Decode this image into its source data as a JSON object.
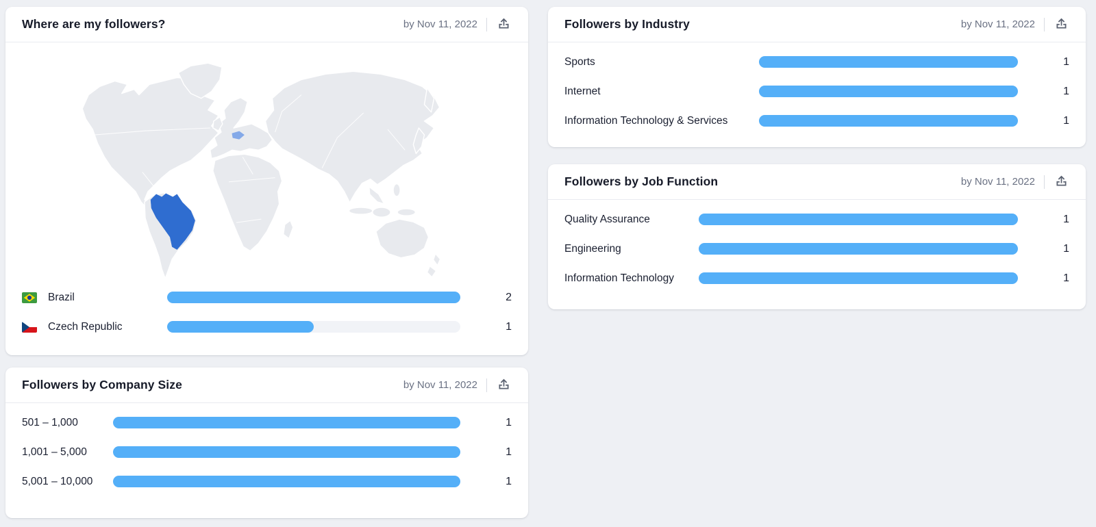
{
  "colors": {
    "bar_fill": "#54aff8",
    "bar_track": "#f1f3f7",
    "map_land": "#e8eaee",
    "map_brazil": "#2f6dd0",
    "map_czech": "#84a9e8",
    "page_bg": "#eef0f4",
    "date_text": "#6a7183"
  },
  "cards": {
    "where_followers": {
      "title": "Where are my followers?",
      "date_label": "by Nov 11, 2022",
      "export_icon": "export-upload-icon",
      "rows": [
        {
          "label": "Brazil",
          "flag": "brazil-flag",
          "value": "2",
          "pct": 100
        },
        {
          "label": "Czech Republic",
          "flag": "czech-republic-flag",
          "value": "1",
          "pct": 50
        }
      ]
    },
    "company_size": {
      "title": "Followers by Company Size",
      "date_label": "by Nov 11, 2022",
      "export_icon": "export-upload-icon",
      "rows": [
        {
          "label": "501 – 1,000",
          "value": "1",
          "pct": 100
        },
        {
          "label": "1,001 – 5,000",
          "value": "1",
          "pct": 100
        },
        {
          "label": "5,001 – 10,000",
          "value": "1",
          "pct": 100
        }
      ]
    },
    "industry": {
      "title": "Followers by Industry",
      "date_label": "by Nov 11, 2022",
      "export_icon": "export-upload-icon",
      "rows": [
        {
          "label": "Sports",
          "value": "1",
          "pct": 100
        },
        {
          "label": "Internet",
          "value": "1",
          "pct": 100
        },
        {
          "label": "Information Technology & Services",
          "value": "1",
          "pct": 100
        }
      ]
    },
    "job_function": {
      "title": "Followers by Job Function",
      "date_label": "by Nov 11, 2022",
      "export_icon": "export-upload-icon",
      "rows": [
        {
          "label": "Quality Assurance",
          "value": "1",
          "pct": 100
        },
        {
          "label": "Engineering",
          "value": "1",
          "pct": 100
        },
        {
          "label": "Information Technology",
          "value": "1",
          "pct": 100
        }
      ]
    },
    "map_highlights": [
      {
        "country": "Brazil",
        "color": "#2f6dd0"
      },
      {
        "country": "Czech Republic",
        "color": "#84a9e8"
      }
    ]
  }
}
